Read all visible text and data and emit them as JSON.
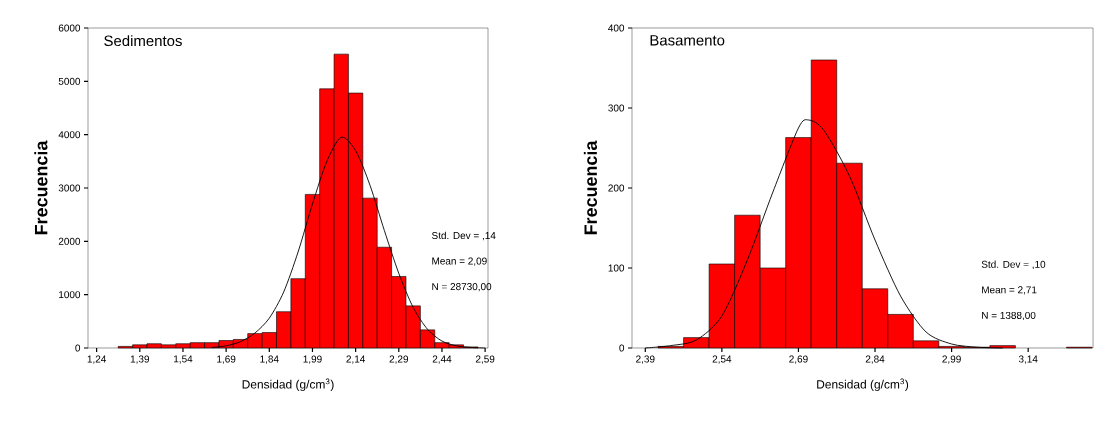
{
  "chart_data": [
    {
      "type": "histogram",
      "title": "Sedimentos",
      "xlabel": "Densidad (g/cm$^{3}$)",
      "ylabel": "Frecuencia",
      "annotations": [
        "Std. Dev = ,14",
        "Mean = 2,09",
        "N = 28730,00"
      ],
      "xlim": [
        1.21,
        2.6
      ],
      "ylim": [
        0,
        6000
      ],
      "xticks": [
        {
          "value": 1.24,
          "label": "1,24"
        },
        {
          "value": 1.39,
          "label": "1,39"
        },
        {
          "value": 1.54,
          "label": "1,54"
        },
        {
          "value": 1.69,
          "label": "1,69"
        },
        {
          "value": 1.84,
          "label": "1,84"
        },
        {
          "value": 1.99,
          "label": "1,99"
        },
        {
          "value": 2.14,
          "label": "2,14"
        },
        {
          "value": 2.29,
          "label": "2,29"
        },
        {
          "value": 2.44,
          "label": "2,44"
        },
        {
          "value": 2.59,
          "label": "2,59"
        }
      ],
      "yticks": [
        0,
        1000,
        2000,
        3000,
        4000,
        5000,
        6000
      ],
      "grid": false,
      "series": [
        {
          "color": "#ff0000",
          "bins": [
            1.315,
            1.365,
            1.415,
            1.465,
            1.515,
            1.565,
            1.615,
            1.665,
            1.715,
            1.765,
            1.815,
            1.865,
            1.915,
            1.965,
            2.015,
            2.065,
            2.115,
            2.165,
            2.215,
            2.265,
            2.315,
            2.365,
            2.415,
            2.465,
            2.515,
            2.565
          ],
          "values": [
            30,
            60,
            80,
            60,
            80,
            100,
            100,
            140,
            160,
            270,
            290,
            680,
            1300,
            2880,
            4860,
            5510,
            4780,
            2810,
            1890,
            1340,
            790,
            340,
            100,
            60,
            20
          ]
        },
        {
          "type": "line",
          "color": "#000000",
          "x": [
            1.64,
            1.69,
            1.74,
            1.79,
            1.84,
            1.89,
            1.94,
            1.99,
            2.04,
            2.09,
            2.14,
            2.19,
            2.24,
            2.29,
            2.34,
            2.39,
            2.44,
            2.49,
            2.54,
            2.59
          ],
          "values": [
            10,
            40,
            120,
            280,
            560,
            1050,
            1800,
            2700,
            3500,
            3950,
            3700,
            3050,
            2200,
            1400,
            760,
            350,
            130,
            40,
            10,
            0
          ]
        }
      ]
    },
    {
      "type": "histogram",
      "title": "Basamento",
      "xlabel": "Densidad (g/cm$^{3}$)",
      "ylabel": "Frecuencia",
      "annotations": [
        "Std. Dev = ,10",
        "Mean = 2,71",
        "N = 1388,00"
      ],
      "xlim": [
        2.364,
        3.267
      ],
      "ylim": [
        0,
        400
      ],
      "xticks": [
        {
          "value": 2.39,
          "label": "2,39"
        },
        {
          "value": 2.54,
          "label": "2,54"
        },
        {
          "value": 2.69,
          "label": "2,69"
        },
        {
          "value": 2.84,
          "label": "2,84"
        },
        {
          "value": 2.99,
          "label": "2,99"
        },
        {
          "value": 3.14,
          "label": "3,14"
        }
      ],
      "yticks": [
        0,
        100,
        200,
        300,
        400
      ],
      "grid": false,
      "series": [
        {
          "color": "#ff0000",
          "bins": [
            2.415,
            2.465,
            2.515,
            2.565,
            2.615,
            2.665,
            2.715,
            2.765,
            2.815,
            2.865,
            2.915,
            2.965,
            3.015,
            3.065,
            3.115,
            3.165,
            3.215,
            3.265
          ],
          "values": [
            2,
            13,
            105,
            166,
            100,
            263,
            360,
            231,
            74,
            42,
            9,
            2,
            1,
            3,
            0,
            0,
            1
          ]
        },
        {
          "type": "line",
          "color": "#000000",
          "x": [
            2.39,
            2.44,
            2.49,
            2.54,
            2.59,
            2.64,
            2.69,
            2.71,
            2.74,
            2.79,
            2.84,
            2.89,
            2.94,
            2.99,
            3.04,
            3.09
          ],
          "values": [
            0,
            3,
            10,
            40,
            110,
            195,
            275,
            285,
            272,
            215,
            135,
            65,
            20,
            5,
            1,
            0
          ]
        }
      ]
    }
  ]
}
